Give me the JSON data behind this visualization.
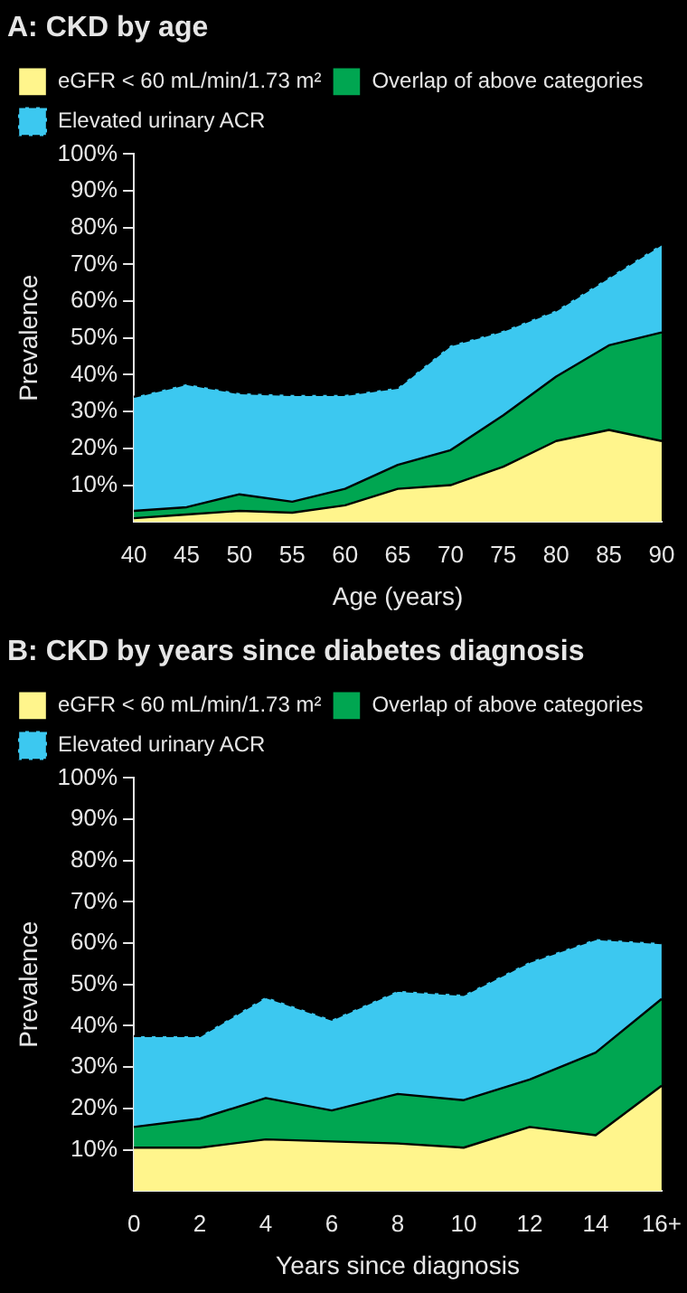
{
  "chart_data": [
    {
      "type": "area",
      "title": "A: CKD by age",
      "xlabel": "Age (years)",
      "ylabel": "Prevalence",
      "stacked": true,
      "legend": "top left",
      "grid": false,
      "categories": [
        "40",
        "45",
        "50",
        "55",
        "60",
        "65",
        "70",
        "75",
        "80",
        "85",
        "90"
      ],
      "ylim": [
        0,
        100
      ],
      "yticks": [
        {
          "value": 10,
          "label": "10%"
        },
        {
          "value": 20,
          "label": "20%"
        },
        {
          "value": 30,
          "label": "30%"
        },
        {
          "value": 40,
          "label": "40%"
        },
        {
          "value": 50,
          "label": "50%"
        },
        {
          "value": 60,
          "label": "60%"
        },
        {
          "value": 70,
          "label": "70%"
        },
        {
          "value": 80,
          "label": "80%"
        },
        {
          "value": 90,
          "label": "90%"
        },
        {
          "value": 100,
          "label": "100%"
        }
      ],
      "series": [
        {
          "name": "eGFR < 60 mL/min/1.73 m²",
          "color": "#fff58c",
          "values": [
            1,
            2,
            3,
            2.5,
            4.5,
            9,
            10,
            15,
            22,
            25,
            22
          ]
        },
        {
          "name": "Overlap of above categories",
          "color": "#00a651",
          "values": [
            2,
            2,
            4.5,
            3,
            4.5,
            6.5,
            9.5,
            14,
            17.5,
            23,
            29.5
          ]
        },
        {
          "name": "Elevated urinary ACR",
          "color": "#3cc8f0",
          "values": [
            31,
            33.5,
            27.5,
            29,
            25.5,
            21,
            28.5,
            23,
            18,
            18.5,
            24
          ]
        }
      ]
    },
    {
      "type": "area",
      "title": "B: CKD by years since diabetes diagnosis",
      "xlabel": "Years since diagnosis",
      "ylabel": "Prevalence",
      "stacked": true,
      "legend": "top left",
      "grid": false,
      "categories": [
        "0",
        "2",
        "4",
        "6",
        "8",
        "10",
        "12",
        "14",
        "16+"
      ],
      "ylim": [
        0,
        100
      ],
      "yticks": [
        {
          "value": 10,
          "label": "10%"
        },
        {
          "value": 20,
          "label": "20%"
        },
        {
          "value": 30,
          "label": "30%"
        },
        {
          "value": 40,
          "label": "40%"
        },
        {
          "value": 50,
          "label": "50%"
        },
        {
          "value": 60,
          "label": "60%"
        },
        {
          "value": 70,
          "label": "70%"
        },
        {
          "value": 80,
          "label": "80%"
        },
        {
          "value": 90,
          "label": "90%"
        },
        {
          "value": 100,
          "label": "100%"
        }
      ],
      "series": [
        {
          "name": "eGFR < 60 mL/min/1.73 m²",
          "color": "#fff58c",
          "values": [
            10.5,
            10.5,
            12.5,
            12,
            11.5,
            10.5,
            15.5,
            13.5,
            25.5
          ]
        },
        {
          "name": "Overlap of above categories",
          "color": "#00a651",
          "values": [
            5,
            7,
            10,
            7.5,
            12,
            11.5,
            11.5,
            20,
            21
          ]
        },
        {
          "name": "Elevated urinary ACR",
          "color": "#3cc8f0",
          "values": [
            22,
            20,
            24.5,
            22,
            25,
            25.5,
            28.5,
            27.5,
            13.5
          ]
        }
      ]
    }
  ]
}
